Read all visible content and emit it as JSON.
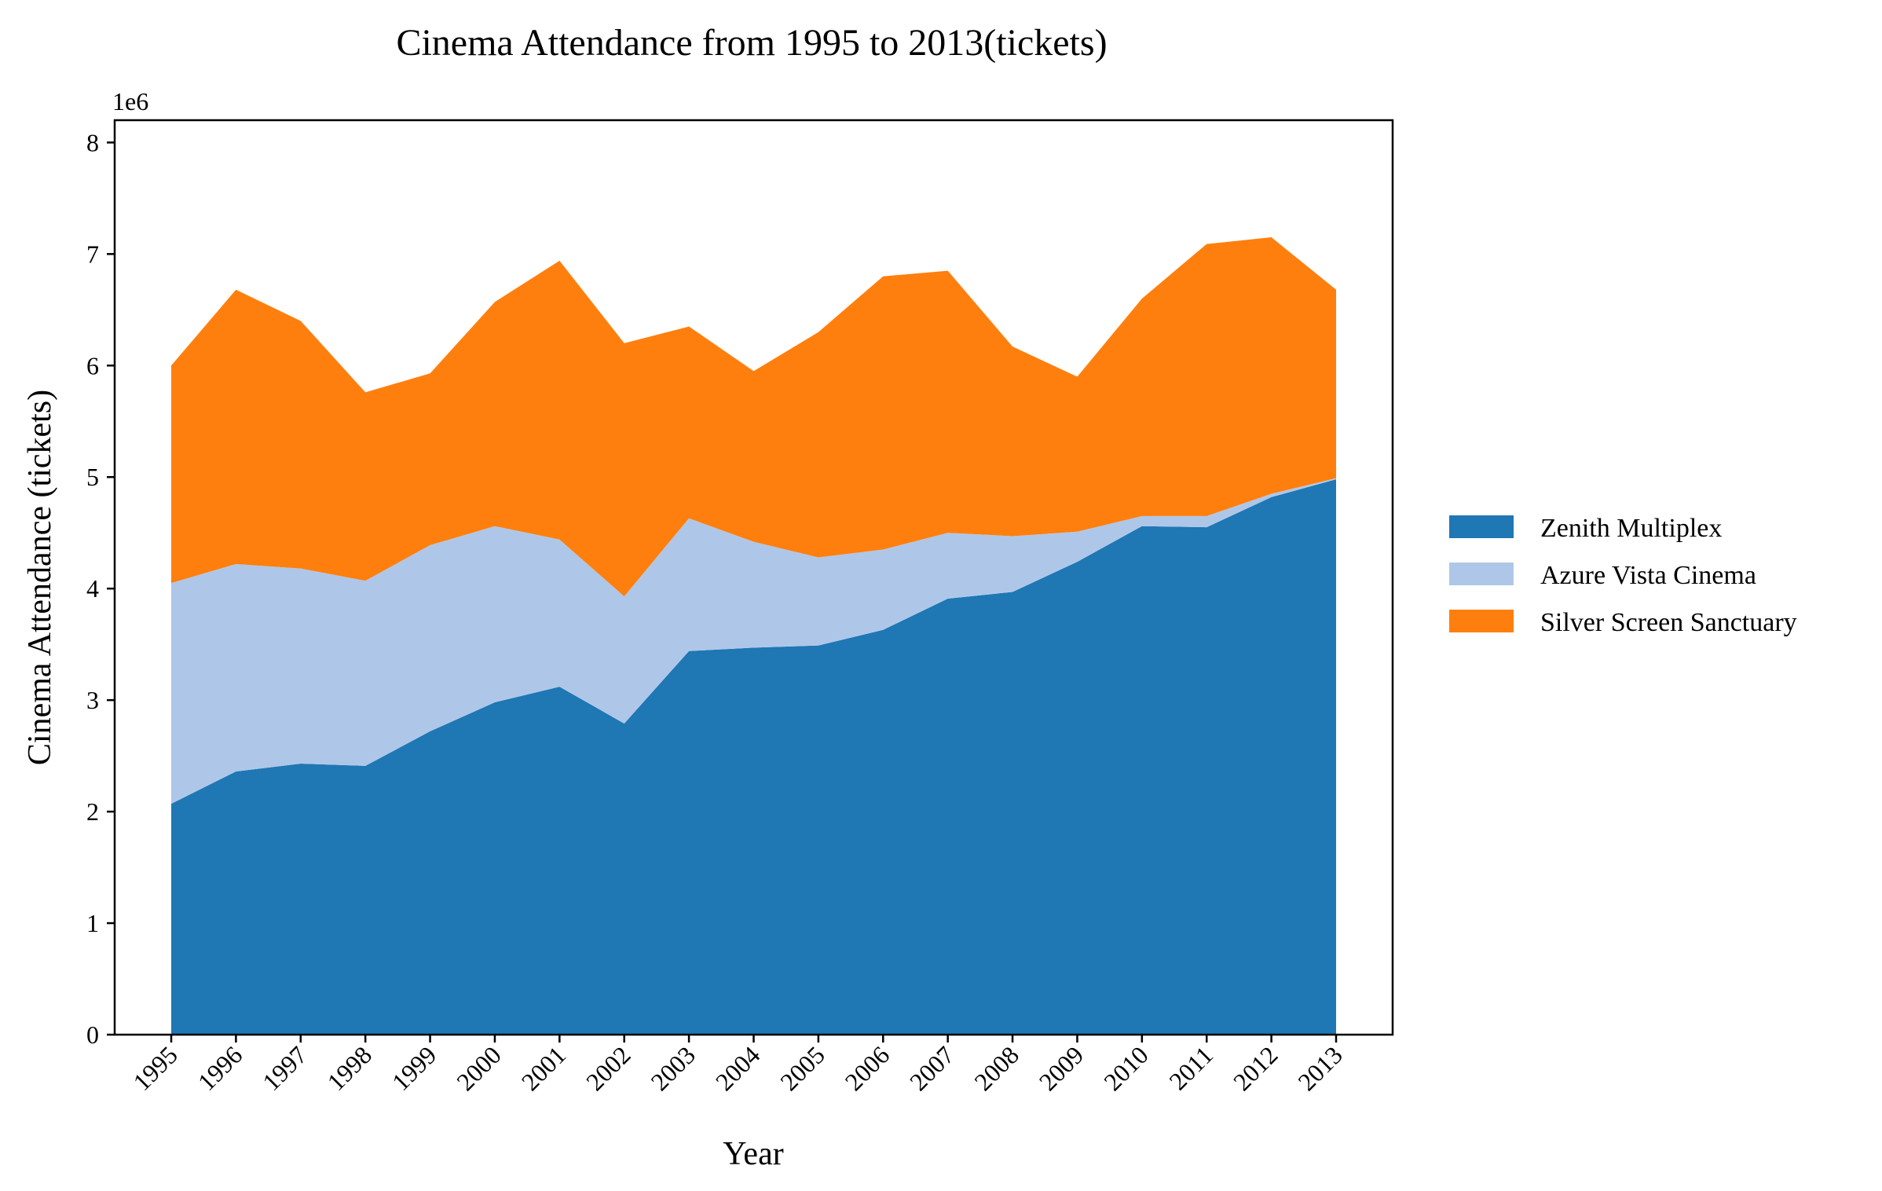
{
  "chart_data": {
    "type": "area",
    "stacked": true,
    "title": "Cinema Attendance from 1995 to 2013(tickets)",
    "xlabel": "Year",
    "ylabel": "Cinema Attendance (tickets)",
    "y_scale_label": "1e6",
    "ylim": [
      0,
      8200000
    ],
    "y_ticks": [
      0,
      1,
      2,
      3,
      4,
      5,
      6,
      7,
      8
    ],
    "y_tick_multiplier": 1000000,
    "grid": false,
    "legend_position": "right",
    "categories": [
      "1995",
      "1996",
      "1997",
      "1998",
      "1999",
      "2000",
      "2001",
      "2002",
      "2003",
      "2004",
      "2005",
      "2006",
      "2007",
      "2008",
      "2009",
      "2010",
      "2011",
      "2012",
      "2013"
    ],
    "series": [
      {
        "name": "Zenith Multiplex",
        "color": "#1f77b4",
        "values": [
          2070000,
          2360000,
          2430000,
          2410000,
          2720000,
          2980000,
          3120000,
          2790000,
          3440000,
          3470000,
          3490000,
          3630000,
          3910000,
          3970000,
          4240000,
          4560000,
          4550000,
          4820000,
          4980000
        ]
      },
      {
        "name": "Azure Vista Cinema",
        "color": "#aec7e8",
        "values": [
          1980000,
          1860000,
          1750000,
          1660000,
          1670000,
          1580000,
          1320000,
          1140000,
          1190000,
          950000,
          790000,
          720000,
          590000,
          500000,
          270000,
          90000,
          100000,
          30000,
          10000
        ]
      },
      {
        "name": "Silver Screen Sanctuary",
        "color": "#ff7f0e",
        "values": [
          1950000,
          2460000,
          2220000,
          1690000,
          1540000,
          2010000,
          2500000,
          2270000,
          1720000,
          1530000,
          2020000,
          2450000,
          2350000,
          1700000,
          1390000,
          1950000,
          2440000,
          2300000,
          1690000
        ]
      }
    ]
  }
}
